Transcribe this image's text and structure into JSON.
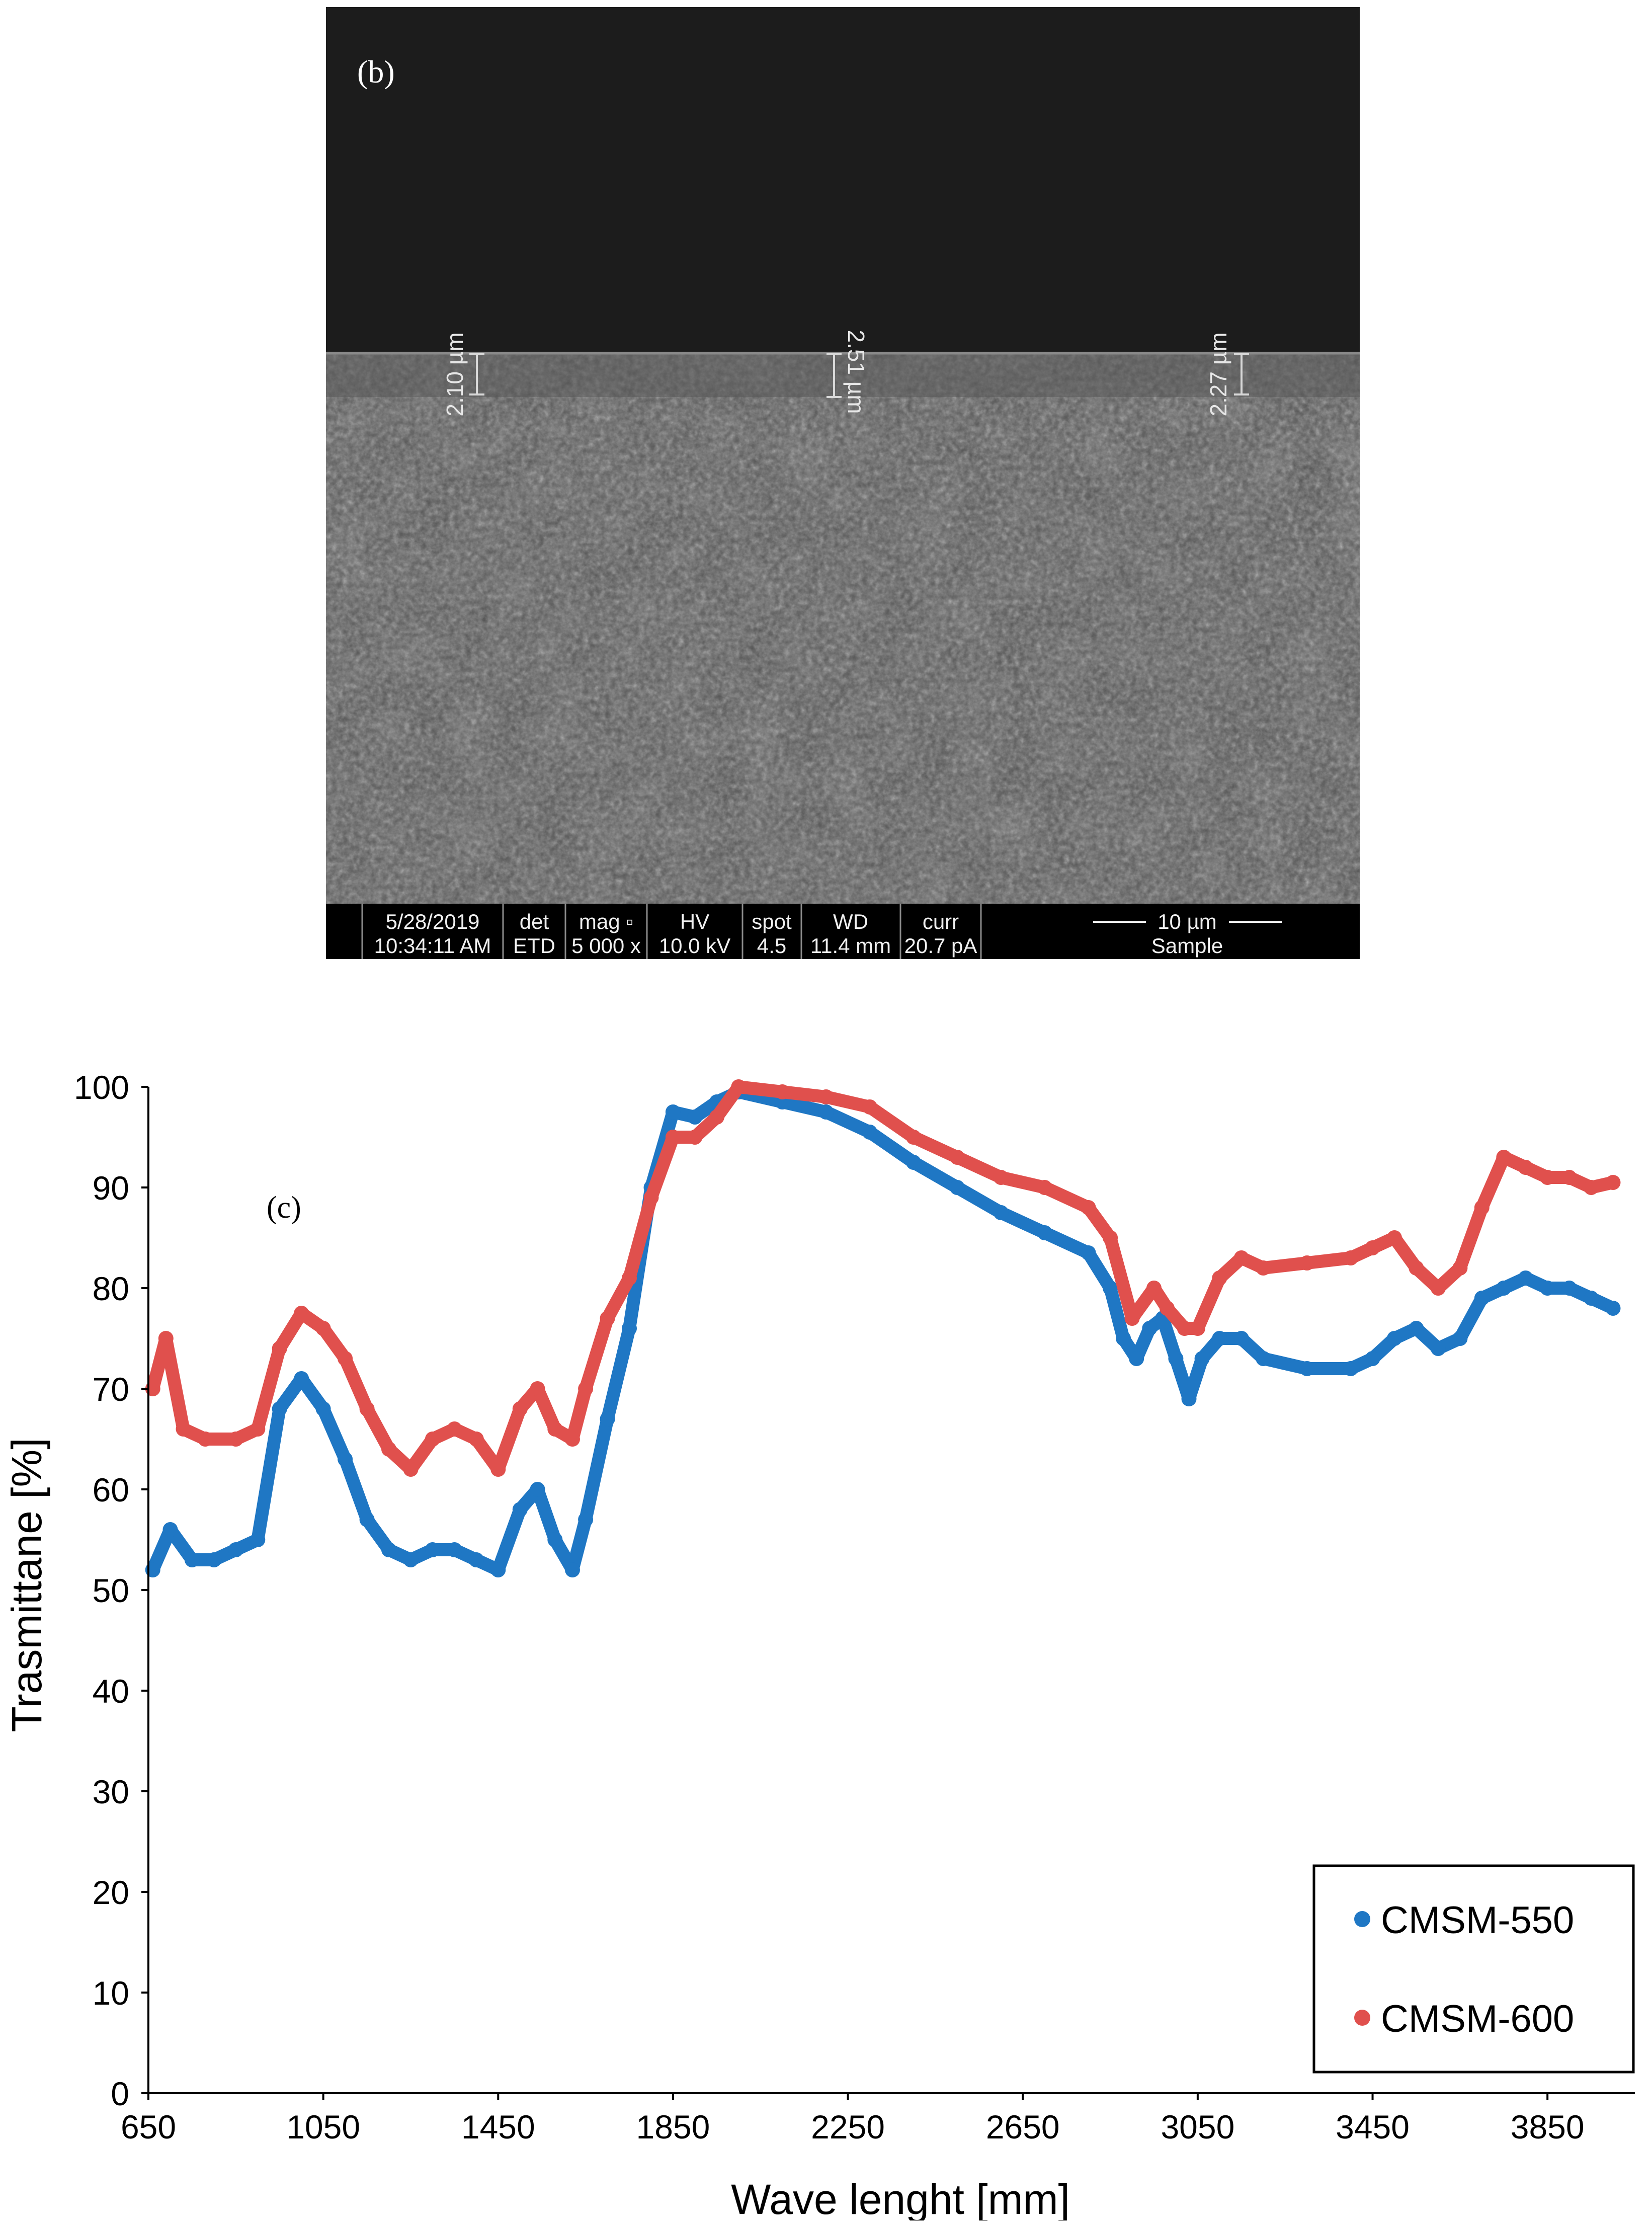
{
  "sem_image": {
    "panel_label": "(b)",
    "measurements": [
      {
        "label": "2.10 µm"
      },
      {
        "label": "2.51 µm"
      },
      {
        "label": "2.27 µm"
      }
    ],
    "info_bar": {
      "date": "5/28/2019",
      "time": "10:34:11 AM",
      "det_header": "det",
      "det_value": "ETD",
      "mag_header": "mag ▫",
      "mag_value": "5 000 x",
      "hv_header": "HV",
      "hv_value": "10.0 kV",
      "spot_header": "spot",
      "spot_value": "4.5",
      "wd_header": "WD",
      "wd_value": "11.4 mm",
      "curr_header": "curr",
      "curr_value": "20.7 pA",
      "scale_label": "10 µm",
      "sample_label": "Sample"
    }
  },
  "chart_data": {
    "type": "scatter",
    "panel_label": "(c)",
    "title": "",
    "xlabel": "Wave lenght [mm]",
    "ylabel": "Trasmittane [%]",
    "xlim": [
      650,
      4050
    ],
    "ylim": [
      0,
      100
    ],
    "x_ticks": [
      650,
      1050,
      1450,
      1850,
      2250,
      2650,
      3050,
      3450,
      3850
    ],
    "y_ticks": [
      0,
      10,
      20,
      30,
      40,
      50,
      60,
      70,
      80,
      90,
      100
    ],
    "grid": false,
    "legend_position": "bottom-right",
    "series": [
      {
        "name": "CMSM-550",
        "color": "#1f77c4",
        "points": [
          [
            660,
            52
          ],
          [
            700,
            56
          ],
          [
            750,
            53
          ],
          [
            800,
            53
          ],
          [
            850,
            54
          ],
          [
            900,
            55
          ],
          [
            950,
            68
          ],
          [
            1000,
            71
          ],
          [
            1050,
            68
          ],
          [
            1100,
            63
          ],
          [
            1150,
            57
          ],
          [
            1200,
            54
          ],
          [
            1250,
            53
          ],
          [
            1300,
            54
          ],
          [
            1350,
            54
          ],
          [
            1400,
            53
          ],
          [
            1450,
            52
          ],
          [
            1500,
            58
          ],
          [
            1540,
            60
          ],
          [
            1580,
            55
          ],
          [
            1620,
            52
          ],
          [
            1650,
            57
          ],
          [
            1700,
            67
          ],
          [
            1750,
            76
          ],
          [
            1800,
            90
          ],
          [
            1850,
            97.5
          ],
          [
            1900,
            97
          ],
          [
            1950,
            98.5
          ],
          [
            2000,
            99.5
          ],
          [
            2100,
            98.5
          ],
          [
            2200,
            97.5
          ],
          [
            2300,
            95.5
          ],
          [
            2400,
            92.5
          ],
          [
            2500,
            90
          ],
          [
            2600,
            87.5
          ],
          [
            2700,
            85.5
          ],
          [
            2800,
            83.5
          ],
          [
            2850,
            80
          ],
          [
            2880,
            75
          ],
          [
            2910,
            73
          ],
          [
            2940,
            76
          ],
          [
            2970,
            77
          ],
          [
            3000,
            73
          ],
          [
            3030,
            69
          ],
          [
            3060,
            73
          ],
          [
            3100,
            75
          ],
          [
            3150,
            75
          ],
          [
            3200,
            73
          ],
          [
            3300,
            72
          ],
          [
            3400,
            72
          ],
          [
            3450,
            73
          ],
          [
            3500,
            75
          ],
          [
            3550,
            76
          ],
          [
            3600,
            74
          ],
          [
            3650,
            75
          ],
          [
            3700,
            79
          ],
          [
            3750,
            80
          ],
          [
            3800,
            81
          ],
          [
            3850,
            80
          ],
          [
            3900,
            80
          ],
          [
            3950,
            79
          ],
          [
            4000,
            78
          ]
        ]
      },
      {
        "name": "CMSM-600",
        "color": "#e0504d",
        "points": [
          [
            660,
            70
          ],
          [
            690,
            75
          ],
          [
            730,
            66
          ],
          [
            780,
            65
          ],
          [
            850,
            65
          ],
          [
            900,
            66
          ],
          [
            950,
            74
          ],
          [
            1000,
            77.5
          ],
          [
            1050,
            76
          ],
          [
            1100,
            73
          ],
          [
            1150,
            68
          ],
          [
            1200,
            64
          ],
          [
            1250,
            62
          ],
          [
            1300,
            65
          ],
          [
            1350,
            66
          ],
          [
            1400,
            65
          ],
          [
            1450,
            62
          ],
          [
            1500,
            68
          ],
          [
            1540,
            70
          ],
          [
            1580,
            66
          ],
          [
            1620,
            65
          ],
          [
            1650,
            70
          ],
          [
            1700,
            77
          ],
          [
            1750,
            81
          ],
          [
            1800,
            89
          ],
          [
            1850,
            95
          ],
          [
            1900,
            95
          ],
          [
            1950,
            97
          ],
          [
            2000,
            100
          ],
          [
            2100,
            99.5
          ],
          [
            2200,
            99
          ],
          [
            2300,
            98
          ],
          [
            2400,
            95
          ],
          [
            2500,
            93
          ],
          [
            2600,
            91
          ],
          [
            2700,
            90
          ],
          [
            2800,
            88
          ],
          [
            2850,
            85
          ],
          [
            2900,
            77
          ],
          [
            2950,
            80
          ],
          [
            2980,
            78
          ],
          [
            3020,
            76
          ],
          [
            3050,
            76
          ],
          [
            3100,
            81
          ],
          [
            3150,
            83
          ],
          [
            3200,
            82
          ],
          [
            3300,
            82.5
          ],
          [
            3400,
            83
          ],
          [
            3450,
            84
          ],
          [
            3500,
            85
          ],
          [
            3550,
            82
          ],
          [
            3600,
            80
          ],
          [
            3650,
            82
          ],
          [
            3700,
            88
          ],
          [
            3750,
            93
          ],
          [
            3800,
            92
          ],
          [
            3850,
            91
          ],
          [
            3900,
            91
          ],
          [
            3950,
            90
          ],
          [
            4000,
            90.5
          ]
        ]
      }
    ]
  }
}
